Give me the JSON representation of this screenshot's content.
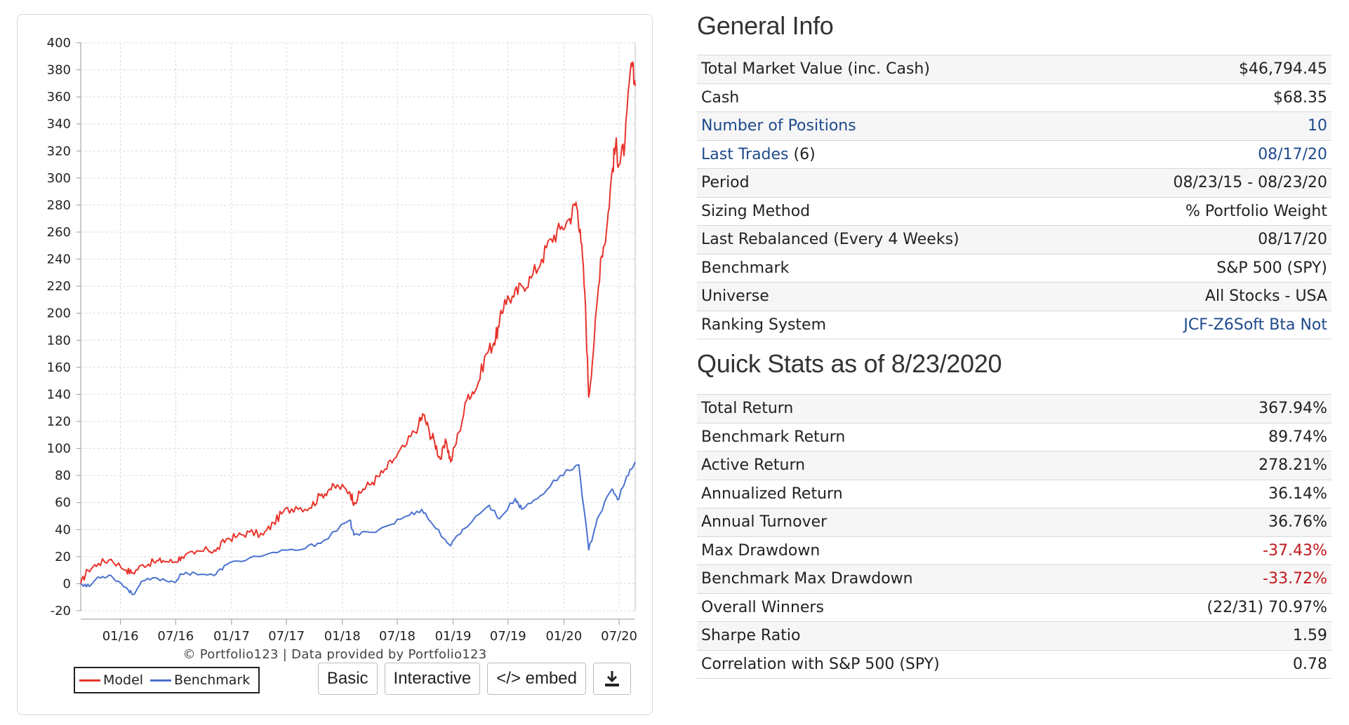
{
  "colors": {
    "model": "#e8332b",
    "benchmark": "#4a72cf",
    "link": "#1e4a8c",
    "negative": "#c0181c"
  },
  "chart_data": {
    "type": "line",
    "title": "",
    "xlabel": "",
    "ylabel": "",
    "ylim": [
      -20,
      400
    ],
    "yticks": [
      -20,
      0,
      20,
      40,
      60,
      80,
      100,
      120,
      140,
      160,
      180,
      200,
      220,
      240,
      260,
      280,
      300,
      320,
      340,
      360,
      380,
      400
    ],
    "xlim": [
      "2015-08-23",
      "2020-08-23"
    ],
    "xticks": [
      {
        "label": "01/16",
        "date": "2016-01-01"
      },
      {
        "label": "07/16",
        "date": "2016-07-01"
      },
      {
        "label": "01/17",
        "date": "2017-01-01"
      },
      {
        "label": "07/17",
        "date": "2017-07-01"
      },
      {
        "label": "01/18",
        "date": "2018-01-01"
      },
      {
        "label": "07/18",
        "date": "2018-07-01"
      },
      {
        "label": "01/19",
        "date": "2019-01-01"
      },
      {
        "label": "07/19",
        "date": "2019-07-01"
      },
      {
        "label": "01/20",
        "date": "2020-01-01"
      },
      {
        "label": "07/20",
        "date": "2020-07-01"
      }
    ],
    "grid": true,
    "legend_position": "bottom-left",
    "series": [
      {
        "name": "Model",
        "color": "#e8332b",
        "points": [
          [
            "2015-08-23",
            0
          ],
          [
            "2015-09-15",
            10
          ],
          [
            "2015-10-20",
            15
          ],
          [
            "2015-12-01",
            18
          ],
          [
            "2016-01-20",
            10
          ],
          [
            "2016-02-10",
            8
          ],
          [
            "2016-03-15",
            14
          ],
          [
            "2016-04-20",
            16
          ],
          [
            "2016-05-20",
            17
          ],
          [
            "2016-06-27",
            16
          ],
          [
            "2016-07-20",
            20
          ],
          [
            "2016-09-01",
            22
          ],
          [
            "2016-10-15",
            25
          ],
          [
            "2016-11-10",
            24
          ],
          [
            "2016-12-15",
            33
          ],
          [
            "2017-01-20",
            35
          ],
          [
            "2017-03-01",
            38
          ],
          [
            "2017-04-15",
            36
          ],
          [
            "2017-05-20",
            45
          ],
          [
            "2017-06-20",
            53
          ],
          [
            "2017-08-01",
            57
          ],
          [
            "2017-09-15",
            56
          ],
          [
            "2017-10-20",
            65
          ],
          [
            "2017-11-20",
            70
          ],
          [
            "2017-12-20",
            72
          ],
          [
            "2018-01-25",
            68
          ],
          [
            "2018-02-10",
            60
          ],
          [
            "2018-03-10",
            70
          ],
          [
            "2018-04-10",
            75
          ],
          [
            "2018-05-15",
            82
          ],
          [
            "2018-06-20",
            92
          ],
          [
            "2018-08-01",
            103
          ],
          [
            "2018-09-10",
            118
          ],
          [
            "2018-09-25",
            125
          ],
          [
            "2018-10-15",
            112
          ],
          [
            "2018-11-01",
            105
          ],
          [
            "2018-11-20",
            92
          ],
          [
            "2018-12-10",
            105
          ],
          [
            "2018-12-24",
            90
          ],
          [
            "2019-01-20",
            112
          ],
          [
            "2019-02-20",
            140
          ],
          [
            "2019-03-20",
            145
          ],
          [
            "2019-04-20",
            170
          ],
          [
            "2019-05-15",
            178
          ],
          [
            "2019-06-01",
            190
          ],
          [
            "2019-06-20",
            210
          ],
          [
            "2019-07-20",
            212
          ],
          [
            "2019-08-15",
            220
          ],
          [
            "2019-09-15",
            226
          ],
          [
            "2019-10-20",
            240
          ],
          [
            "2019-11-20",
            255
          ],
          [
            "2019-12-20",
            262
          ],
          [
            "2020-01-20",
            270
          ],
          [
            "2020-02-10",
            282
          ],
          [
            "2020-02-24",
            262
          ],
          [
            "2020-03-10",
            215
          ],
          [
            "2020-03-23",
            138
          ],
          [
            "2020-04-10",
            180
          ],
          [
            "2020-05-01",
            240
          ],
          [
            "2020-05-20",
            260
          ],
          [
            "2020-06-08",
            305
          ],
          [
            "2020-06-20",
            325
          ],
          [
            "2020-07-01",
            310
          ],
          [
            "2020-07-20",
            325
          ],
          [
            "2020-08-10",
            385
          ],
          [
            "2020-08-23",
            368
          ]
        ]
      },
      {
        "name": "Benchmark",
        "color": "#4a72cf",
        "points": [
          [
            "2015-08-23",
            0
          ],
          [
            "2015-09-20",
            -2
          ],
          [
            "2015-10-20",
            5
          ],
          [
            "2015-12-01",
            6
          ],
          [
            "2016-01-20",
            -3
          ],
          [
            "2016-02-11",
            -8
          ],
          [
            "2016-03-15",
            2
          ],
          [
            "2016-05-01",
            4
          ],
          [
            "2016-06-27",
            1
          ],
          [
            "2016-07-20",
            7
          ],
          [
            "2016-09-01",
            8
          ],
          [
            "2016-11-04",
            6
          ],
          [
            "2016-12-15",
            14
          ],
          [
            "2017-03-01",
            19
          ],
          [
            "2017-06-01",
            23
          ],
          [
            "2017-09-01",
            26
          ],
          [
            "2017-11-01",
            32
          ],
          [
            "2018-01-26",
            47
          ],
          [
            "2018-02-08",
            36
          ],
          [
            "2018-04-01",
            38
          ],
          [
            "2018-06-01",
            43
          ],
          [
            "2018-08-01",
            50
          ],
          [
            "2018-09-20",
            55
          ],
          [
            "2018-10-25",
            44
          ],
          [
            "2018-12-24",
            28
          ],
          [
            "2019-02-01",
            40
          ],
          [
            "2019-04-30",
            58
          ],
          [
            "2019-06-03",
            48
          ],
          [
            "2019-07-25",
            63
          ],
          [
            "2019-08-15",
            55
          ],
          [
            "2019-10-15",
            65
          ],
          [
            "2019-12-20",
            80
          ],
          [
            "2020-02-19",
            88
          ],
          [
            "2020-03-23",
            25
          ],
          [
            "2020-04-20",
            48
          ],
          [
            "2020-06-08",
            70
          ],
          [
            "2020-06-26",
            62
          ],
          [
            "2020-07-20",
            75
          ],
          [
            "2020-08-23",
            90
          ]
        ]
      }
    ]
  },
  "chart": {
    "credit": "© Portfolio123 | Data provided by Portfolio123",
    "legend": [
      {
        "label": "Model",
        "color": "#e8332b"
      },
      {
        "label": "Benchmark",
        "color": "#4a72cf"
      }
    ],
    "buttons": {
      "basic": "Basic",
      "interactive": "Interactive",
      "embed": "</> embed",
      "download_icon": "download-icon"
    }
  },
  "general_info": {
    "title": "General Info",
    "rows": [
      {
        "label": "Total Market Value (inc. Cash)",
        "value": "$46,794.45",
        "link": false
      },
      {
        "label": "Cash",
        "value": "$68.35",
        "link": false
      },
      {
        "label": "Number of Positions",
        "value": "10",
        "link": true
      },
      {
        "label": "Last Trades",
        "suffix": " (6)",
        "value": "08/17/20",
        "link": true
      },
      {
        "label": "Period",
        "value": "08/23/15 - 08/23/20",
        "link": false
      },
      {
        "label": "Sizing Method",
        "value": "% Portfolio Weight",
        "link": false
      },
      {
        "label": "Last Rebalanced (Every 4 Weeks)",
        "value": "08/17/20",
        "link": false
      },
      {
        "label": "Benchmark",
        "value": "S&P 500 (SPY)",
        "link": false
      },
      {
        "label": "Universe",
        "value": "All Stocks - USA",
        "link": false
      },
      {
        "label": "Ranking System",
        "value": "JCF-Z6Soft Bta Not",
        "link": false,
        "value_link": true
      }
    ]
  },
  "quick_stats": {
    "title": "Quick Stats as of 8/23/2020",
    "rows": [
      {
        "label": "Total Return",
        "value": "367.94%",
        "negative": false
      },
      {
        "label": "Benchmark Return",
        "value": "89.74%",
        "negative": false
      },
      {
        "label": "Active Return",
        "value": "278.21%",
        "negative": false
      },
      {
        "label": "Annualized Return",
        "value": "36.14%",
        "negative": false
      },
      {
        "label": "Annual Turnover",
        "value": "36.76%",
        "negative": false
      },
      {
        "label": "Max Drawdown",
        "value": "-37.43%",
        "negative": true
      },
      {
        "label": "Benchmark Max Drawdown",
        "value": "-33.72%",
        "negative": true
      },
      {
        "label": "Overall Winners",
        "value": "(22/31) 70.97%",
        "negative": false
      },
      {
        "label": "Sharpe Ratio",
        "value": "1.59",
        "negative": false
      },
      {
        "label": "Correlation with S&P 500 (SPY)",
        "value": "0.78",
        "negative": false
      }
    ]
  }
}
